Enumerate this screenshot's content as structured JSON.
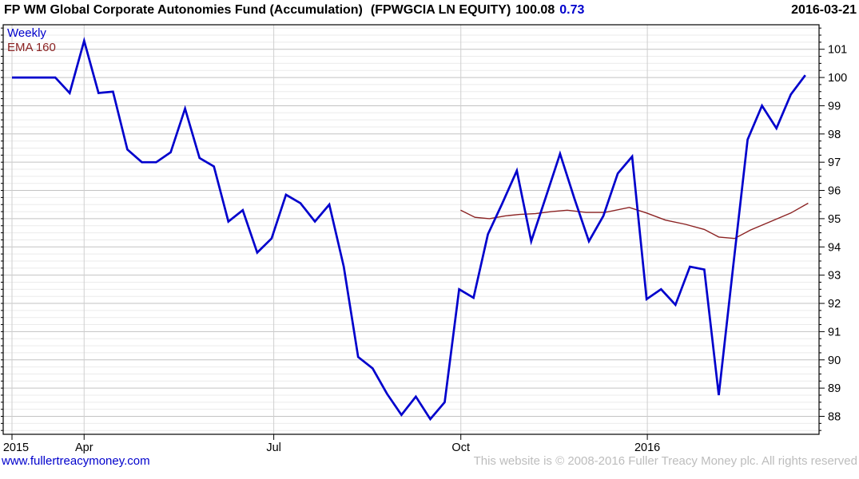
{
  "header": {
    "fund_name": "FP WM Global Corporate Autonomies Fund (Accumulation)",
    "ticker": "(FPWGCIA LN EQUITY)",
    "price": "100.08",
    "change": "0.73",
    "date": "2016-03-21"
  },
  "legend": {
    "frequency": "Weekly",
    "overlay": "EMA 160"
  },
  "footer": {
    "website": "www.fullertreacymoney.com",
    "copyright": "This website is © 2008-2016 Fuller Treacy Money plc. All rights reserved"
  },
  "chart_data": {
    "type": "line",
    "title": "FP WM Global Corporate Autonomies Fund (Accumulation) (FPWGCIA LN EQUITY)",
    "last_price": 100.08,
    "change": 0.73,
    "frequency": "Weekly",
    "ylim": [
      87.36,
      101.87
    ],
    "y_minor_step": 0.25,
    "y_ticks": [
      88,
      89,
      90,
      91,
      92,
      93,
      94,
      95,
      96,
      97,
      98,
      99,
      100,
      101
    ],
    "x_ticks": [
      {
        "label": "2015",
        "week": 0
      },
      {
        "label": "Apr",
        "week": 5.0
      },
      {
        "label": "Jul",
        "week": 18.15
      },
      {
        "label": "Oct",
        "week": 31.12
      },
      {
        "label": "2016",
        "week": 44.05
      }
    ],
    "series": [
      {
        "name": "Weekly price",
        "color": "#0000cc",
        "values": [
          100.0,
          100.0,
          100.0,
          100.0,
          99.45,
          101.3,
          99.45,
          99.5,
          97.45,
          97.0,
          97.0,
          97.35,
          98.9,
          97.15,
          96.85,
          94.9,
          95.3,
          93.8,
          94.3,
          95.85,
          95.55,
          94.9,
          95.5,
          93.3,
          90.1,
          89.7,
          88.8,
          88.05,
          88.7,
          87.9,
          88.5,
          92.5,
          92.2,
          94.45,
          95.55,
          96.7,
          94.2,
          95.75,
          97.3,
          95.7,
          94.2,
          95.1,
          96.6,
          97.2,
          92.15,
          92.5,
          91.95,
          93.3,
          93.2,
          88.75,
          93.3,
          97.8,
          99.0,
          98.2,
          99.4,
          100.08
        ]
      },
      {
        "name": "EMA 160",
        "color": "#8b2222",
        "points": [
          [
            31.1,
            95.3
          ],
          [
            32.1,
            95.05
          ],
          [
            33.1,
            95.0
          ],
          [
            34.2,
            95.1
          ],
          [
            35.2,
            95.15
          ],
          [
            36.3,
            95.18
          ],
          [
            37.4,
            95.25
          ],
          [
            38.5,
            95.3
          ],
          [
            39.8,
            95.22
          ],
          [
            41.1,
            95.22
          ],
          [
            42.8,
            95.4
          ],
          [
            44.0,
            95.2
          ],
          [
            45.3,
            94.95
          ],
          [
            46.7,
            94.8
          ],
          [
            48.0,
            94.62
          ],
          [
            49.0,
            94.35
          ],
          [
            50.1,
            94.3
          ],
          [
            51.2,
            94.6
          ],
          [
            52.6,
            94.9
          ],
          [
            54.0,
            95.2
          ],
          [
            55.2,
            95.55
          ]
        ]
      }
    ]
  }
}
